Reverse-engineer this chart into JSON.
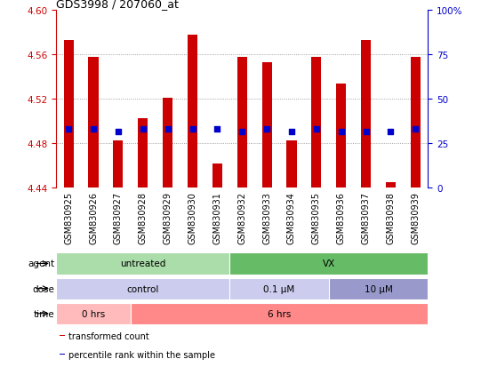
{
  "title": "GDS3998 / 207060_at",
  "samples": [
    "GSM830925",
    "GSM830926",
    "GSM830927",
    "GSM830928",
    "GSM830929",
    "GSM830930",
    "GSM830931",
    "GSM830932",
    "GSM830933",
    "GSM830934",
    "GSM830935",
    "GSM830936",
    "GSM830937",
    "GSM830938",
    "GSM830939"
  ],
  "bar_tops": [
    4.573,
    4.558,
    4.483,
    4.503,
    4.521,
    4.578,
    4.462,
    4.558,
    4.553,
    4.483,
    4.558,
    4.534,
    4.573,
    4.445,
    4.558
  ],
  "bar_base": 4.44,
  "percentile_values": [
    4.493,
    4.493,
    4.491,
    4.493,
    4.493,
    4.493,
    4.493,
    4.491,
    4.493,
    4.491,
    4.493,
    4.491,
    4.491,
    4.491,
    4.493
  ],
  "ylim": [
    4.44,
    4.6
  ],
  "yticks_left": [
    4.44,
    4.48,
    4.52,
    4.56,
    4.6
  ],
  "yticks_right_data": [
    4.44,
    4.48,
    4.52,
    4.56,
    4.6
  ],
  "right_ylabels": [
    "0",
    "25",
    "50",
    "75",
    "100%"
  ],
  "bar_color": "#cc0000",
  "percentile_color": "#0000cc",
  "grid_color": "#888888",
  "agent_groups": [
    {
      "label": "untreated",
      "start": 0,
      "end": 7,
      "color": "#aaddaa"
    },
    {
      "label": "VX",
      "start": 7,
      "end": 15,
      "color": "#66bb66"
    }
  ],
  "dose_groups": [
    {
      "label": "control",
      "start": 0,
      "end": 7,
      "color": "#ccccee"
    },
    {
      "label": "0.1 μM",
      "start": 7,
      "end": 11,
      "color": "#ccccee"
    },
    {
      "label": "10 μM",
      "start": 11,
      "end": 15,
      "color": "#9999cc"
    }
  ],
  "time_groups": [
    {
      "label": "0 hrs",
      "start": 0,
      "end": 3,
      "color": "#ffbbbb"
    },
    {
      "label": "6 hrs",
      "start": 3,
      "end": 15,
      "color": "#ff8888"
    }
  ],
  "legend_items": [
    {
      "color": "#cc0000",
      "label": "transformed count"
    },
    {
      "color": "#0000cc",
      "label": "percentile rank within the sample"
    }
  ],
  "left_label_color": "#cc0000",
  "right_label_color": "#0000cc",
  "title_color": "#000000",
  "label_fontsize": 7,
  "tick_fontsize": 7.5,
  "annotation_fontsize": 7.5,
  "row_label_fontsize": 7.5
}
